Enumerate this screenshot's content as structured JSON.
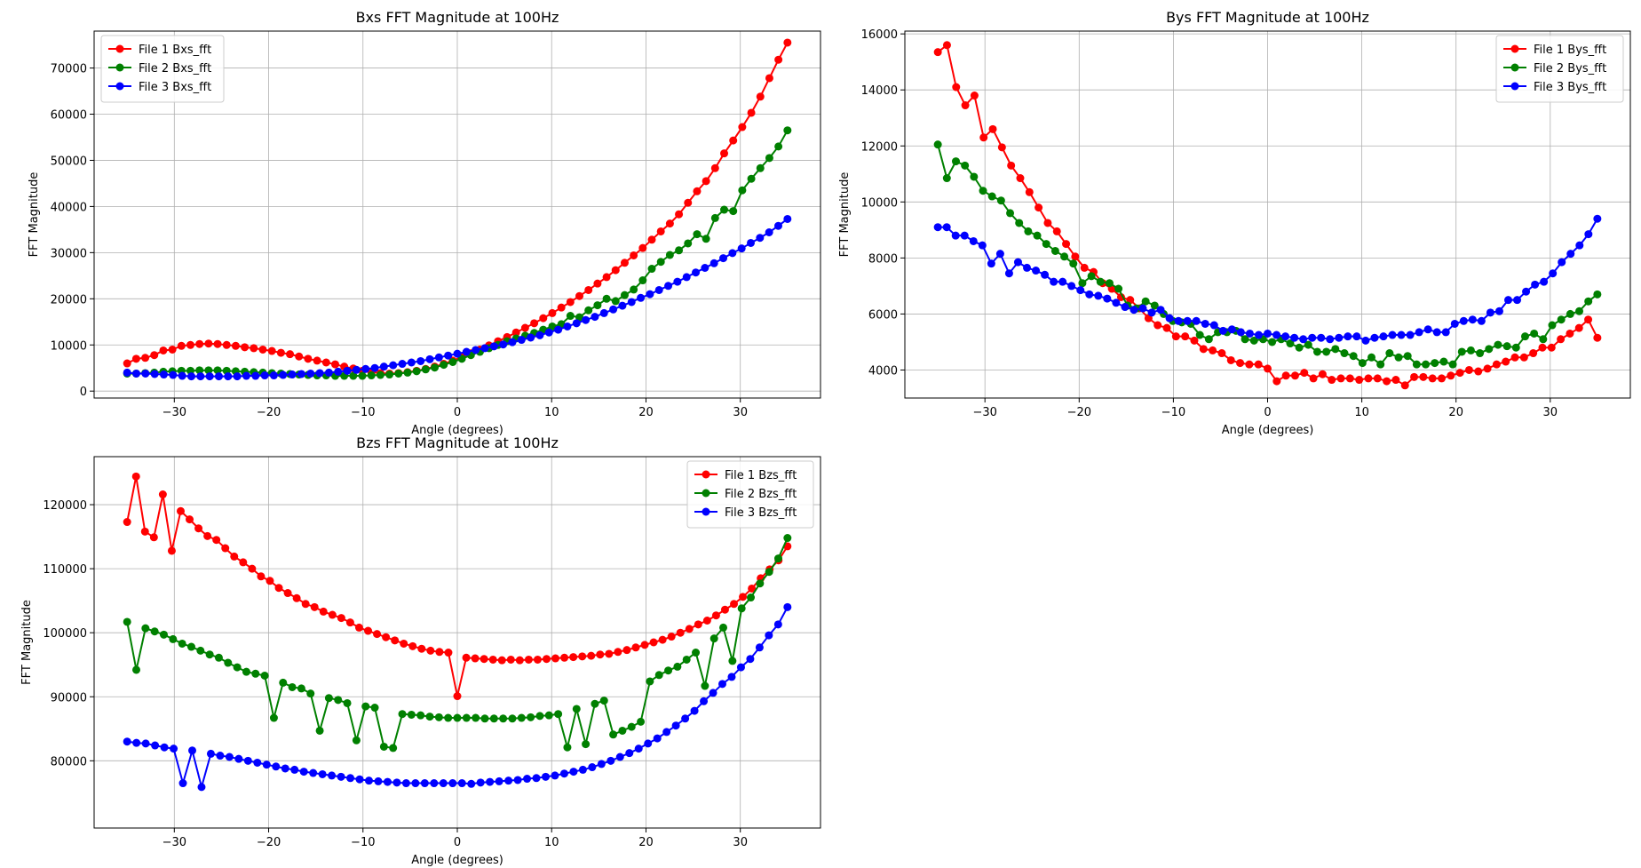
{
  "figure": {
    "background": "#ffffff"
  },
  "chart_data": [
    {
      "type": "line",
      "title": "Bxs FFT Magnitude at 100Hz",
      "xlabel": "Angle (degrees)",
      "ylabel": "FFT Magnitude",
      "xlim": [
        -38.5,
        38.5
      ],
      "ylim": [
        -1500,
        78000
      ],
      "xticks": [
        -30,
        -20,
        -10,
        0,
        10,
        20,
        30
      ],
      "yticks": [
        0,
        10000,
        20000,
        30000,
        40000,
        50000,
        60000,
        70000
      ],
      "grid": true,
      "legend": "top-left",
      "x_range": [
        -35,
        35
      ],
      "series": [
        {
          "name": "File 1 Bxs_fft",
          "color": "#ff0000",
          "values": [
            6000,
            7000,
            7200,
            7800,
            8800,
            9000,
            9800,
            10000,
            10200,
            10300,
            10200,
            10000,
            9800,
            9500,
            9300,
            9000,
            8700,
            8300,
            8000,
            7500,
            7000,
            6600,
            6200,
            5800,
            5300,
            4900,
            4400,
            4100,
            3900,
            3800,
            3900,
            4100,
            4400,
            4800,
            5300,
            5900,
            6600,
            7400,
            8200,
            9000,
            9900,
            10800,
            11700,
            12700,
            13700,
            14700,
            15800,
            16900,
            18100,
            19300,
            20600,
            21900,
            23300,
            24700,
            26200,
            27800,
            29400,
            31000,
            32800,
            34600,
            36300,
            38300,
            40800,
            43300,
            45500,
            48300,
            51500,
            54300,
            57200,
            60300,
            63800,
            67800,
            71800,
            75500
          ]
        },
        {
          "name": "File 2 Bxs_fft",
          "color": "#008000",
          "values": [
            3800,
            3800,
            3900,
            4000,
            4200,
            4300,
            4400,
            4400,
            4500,
            4500,
            4500,
            4400,
            4300,
            4200,
            4100,
            4000,
            3900,
            3800,
            3700,
            3600,
            3500,
            3400,
            3400,
            3300,
            3300,
            3300,
            3300,
            3400,
            3500,
            3600,
            3800,
            4000,
            4300,
            4700,
            5100,
            5700,
            6300,
            7000,
            7800,
            8500,
            9300,
            10000,
            10800,
            11400,
            12000,
            12600,
            13300,
            14000,
            14500,
            16300,
            16000,
            17500,
            18600,
            20000,
            19500,
            20800,
            22000,
            24000,
            26500,
            28000,
            29500,
            30500,
            32000,
            34000,
            33000,
            37500,
            39300,
            39000,
            43500,
            46000,
            48300,
            50500,
            53000,
            56500
          ]
        },
        {
          "name": "File 3 Bxs_fft",
          "color": "#0000ff",
          "values": [
            4000,
            3800,
            3800,
            3700,
            3600,
            3500,
            3300,
            3200,
            3200,
            3200,
            3200,
            3200,
            3200,
            3300,
            3300,
            3400,
            3400,
            3500,
            3600,
            3700,
            3800,
            3900,
            4000,
            4200,
            4400,
            4600,
            4800,
            5000,
            5300,
            5600,
            5900,
            6200,
            6500,
            6900,
            7300,
            7700,
            8100,
            8500,
            8900,
            9300,
            9700,
            10100,
            10600,
            11100,
            11600,
            12100,
            12700,
            13300,
            14000,
            14700,
            15400,
            16100,
            16900,
            17700,
            18500,
            19300,
            20200,
            21000,
            21900,
            22800,
            23700,
            24700,
            25700,
            26700,
            27700,
            28800,
            29900,
            30900,
            32100,
            33200,
            34400,
            35800,
            37300
          ]
        }
      ]
    },
    {
      "type": "line",
      "title": "Bys FFT Magnitude at 100Hz",
      "xlabel": "Angle (degrees)",
      "ylabel": "FFT Magnitude",
      "xlim": [
        -38.5,
        38.5
      ],
      "ylim": [
        3000,
        16100
      ],
      "xticks": [
        -30,
        -20,
        -10,
        0,
        10,
        20,
        30
      ],
      "yticks": [
        4000,
        6000,
        8000,
        10000,
        12000,
        14000,
        16000
      ],
      "grid": true,
      "legend": "top-right",
      "x_range": [
        -35,
        35
      ],
      "series": [
        {
          "name": "File 1 Bys_fft",
          "color": "#ff0000",
          "values": [
            15350,
            15600,
            14100,
            13450,
            13800,
            12300,
            12600,
            11950,
            11300,
            10850,
            10350,
            9800,
            9250,
            8950,
            8500,
            8050,
            7650,
            7500,
            7100,
            6900,
            6600,
            6500,
            6200,
            5850,
            5600,
            5500,
            5200,
            5200,
            5050,
            4750,
            4700,
            4600,
            4350,
            4250,
            4200,
            4200,
            4050,
            3600,
            3800,
            3800,
            3900,
            3700,
            3850,
            3650,
            3700,
            3700,
            3650,
            3700,
            3700,
            3600,
            3650,
            3450,
            3750,
            3750,
            3700,
            3700,
            3800,
            3900,
            4000,
            3950,
            4050,
            4200,
            4300,
            4450,
            4450,
            4600,
            4800,
            4800,
            5100,
            5300,
            5500,
            5800,
            5150
          ]
        },
        {
          "name": "File 2 Bys_fft",
          "color": "#008000",
          "values": [
            12050,
            10850,
            11450,
            11300,
            10900,
            10400,
            10200,
            10050,
            9600,
            9250,
            8950,
            8800,
            8500,
            8250,
            8050,
            7800,
            7100,
            7350,
            7150,
            7100,
            6900,
            6300,
            6200,
            6450,
            6300,
            6000,
            5750,
            5700,
            5650,
            5250,
            5100,
            5350,
            5350,
            5400,
            5100,
            5050,
            5100,
            5000,
            5100,
            4950,
            4800,
            4900,
            4650,
            4650,
            4750,
            4600,
            4500,
            4250,
            4450,
            4200,
            4600,
            4450,
            4500,
            4200,
            4200,
            4250,
            4300,
            4200,
            4650,
            4700,
            4600,
            4750,
            4900,
            4850,
            4800,
            5200,
            5300,
            5100,
            5600,
            5800,
            6000,
            6100,
            6450,
            6700
          ]
        },
        {
          "name": "File 3 Bys_fft",
          "color": "#0000ff",
          "values": [
            9100,
            9100,
            8800,
            8800,
            8600,
            8450,
            7800,
            8150,
            7450,
            7850,
            7650,
            7550,
            7400,
            7150,
            7150,
            7000,
            6850,
            6700,
            6650,
            6550,
            6400,
            6250,
            6150,
            6200,
            6050,
            6150,
            5850,
            5750,
            5750,
            5750,
            5650,
            5600,
            5400,
            5450,
            5350,
            5300,
            5250,
            5300,
            5250,
            5200,
            5150,
            5100,
            5150,
            5150,
            5100,
            5150,
            5200,
            5200,
            5050,
            5150,
            5200,
            5250,
            5250,
            5250,
            5350,
            5450,
            5350,
            5350,
            5650,
            5750,
            5800,
            5750,
            6050,
            6100,
            6500,
            6500,
            6800,
            7050,
            7150,
            7450,
            7850,
            8150,
            8450,
            8850,
            9400
          ]
        }
      ]
    },
    {
      "type": "line",
      "title": "Bzs FFT Magnitude at 100Hz",
      "xlabel": "Angle (degrees)",
      "ylabel": "FFT Magnitude",
      "xlim": [
        -38.5,
        38.5
      ],
      "ylim": [
        69500,
        127500
      ],
      "xticks": [
        -30,
        -20,
        -10,
        0,
        10,
        20,
        30
      ],
      "yticks": [
        80000,
        90000,
        100000,
        110000,
        120000
      ],
      "grid": true,
      "legend": "top-right",
      "x_range": [
        -35,
        35
      ],
      "series": [
        {
          "name": "File 1 Bzs_fft",
          "color": "#ff0000",
          "values": [
            117300,
            124400,
            115800,
            114900,
            121600,
            112800,
            119000,
            117700,
            116300,
            115100,
            114500,
            113200,
            111900,
            111000,
            110000,
            108800,
            108100,
            107000,
            106200,
            105400,
            104500,
            104000,
            103300,
            102800,
            102300,
            101600,
            100800,
            100300,
            99800,
            99300,
            98800,
            98300,
            97900,
            97500,
            97200,
            97000,
            96900,
            90100,
            96100,
            96000,
            95900,
            95800,
            95700,
            95800,
            95700,
            95800,
            95800,
            95900,
            96000,
            96100,
            96200,
            96300,
            96400,
            96600,
            96700,
            97000,
            97300,
            97700,
            98100,
            98500,
            98900,
            99400,
            100000,
            100600,
            101300,
            101900,
            102700,
            103600,
            104500,
            105600,
            106900,
            108500,
            109900,
            111300,
            113500
          ]
        },
        {
          "name": "File 2 Bzs_fft",
          "color": "#008000",
          "values": [
            101700,
            94200,
            100700,
            100200,
            99700,
            99000,
            98300,
            97800,
            97200,
            96600,
            96100,
            95300,
            94600,
            93900,
            93600,
            93300,
            86700,
            92200,
            91500,
            91300,
            90500,
            84700,
            89800,
            89500,
            89000,
            83200,
            88500,
            88300,
            82200,
            82000,
            87300,
            87200,
            87100,
            86900,
            86800,
            86700,
            86700,
            86700,
            86700,
            86600,
            86600,
            86600,
            86600,
            86700,
            86800,
            87000,
            87100,
            87300,
            82100,
            88100,
            82600,
            88900,
            89400,
            84100,
            84700,
            85300,
            86100,
            92400,
            93400,
            94100,
            94700,
            95800,
            96900,
            91700,
            99100,
            100800,
            95600,
            103800,
            105500,
            107700,
            109500,
            111600,
            114800
          ]
        },
        {
          "name": "File 3 Bzs_fft",
          "color": "#0000ff",
          "values": [
            83000,
            82800,
            82700,
            82400,
            82100,
            81900,
            76500,
            81600,
            75900,
            81100,
            80800,
            80600,
            80300,
            80000,
            79700,
            79400,
            79100,
            78800,
            78600,
            78300,
            78100,
            77900,
            77700,
            77500,
            77300,
            77100,
            76900,
            76800,
            76700,
            76600,
            76500,
            76500,
            76500,
            76500,
            76500,
            76500,
            76500,
            76400,
            76600,
            76700,
            76800,
            76900,
            77000,
            77200,
            77300,
            77500,
            77700,
            78000,
            78300,
            78600,
            79000,
            79500,
            80000,
            80600,
            81200,
            81900,
            82700,
            83500,
            84500,
            85500,
            86600,
            87800,
            89300,
            90600,
            92000,
            93100,
            94600,
            95900,
            97700,
            99600,
            101300,
            104000
          ]
        }
      ]
    }
  ]
}
